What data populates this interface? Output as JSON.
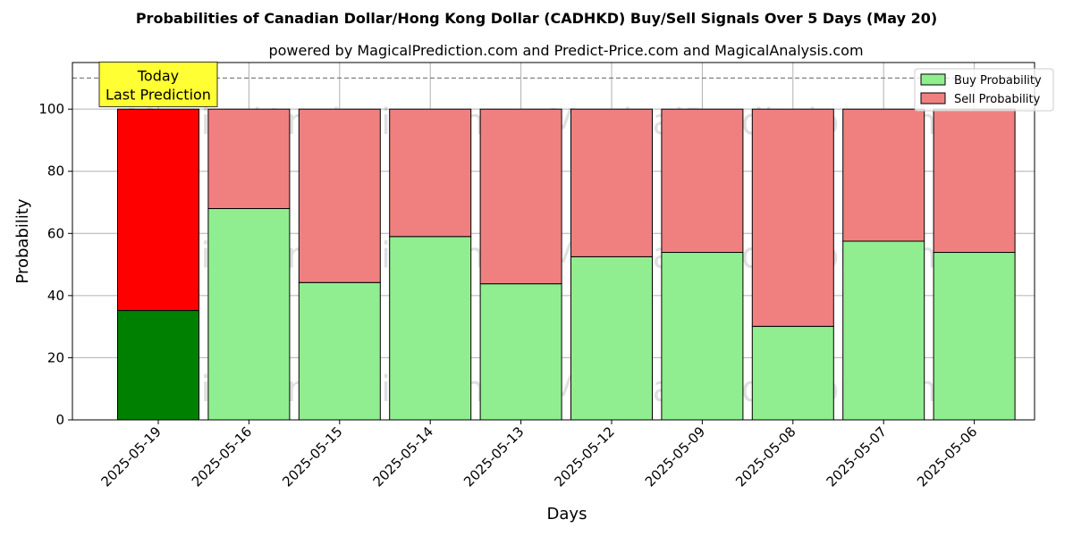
{
  "chart_data": {
    "type": "bar",
    "stacked": true,
    "title": "Probabilities of Canadian Dollar/Hong Kong Dollar (CADHKD) Buy/Sell Signals Over 5 Days (May 20)",
    "subtitle": "powered by MagicalPrediction.com and Predict-Price.com and MagicalAnalysis.com",
    "xlabel": "Days",
    "ylabel": "Probability",
    "ylim": [
      0,
      115
    ],
    "yticks": [
      0,
      20,
      40,
      60,
      80,
      100
    ],
    "grid": true,
    "legend_position": "top-right",
    "categories": [
      "2025-05-19",
      "2025-05-16",
      "2025-05-15",
      "2025-05-14",
      "2025-05-13",
      "2025-05-12",
      "2025-05-09",
      "2025-05-08",
      "2025-05-07",
      "2025-05-06"
    ],
    "series": [
      {
        "name": "Buy Probability",
        "values": [
          35.2,
          68.0,
          44.2,
          59.0,
          43.8,
          52.5,
          53.9,
          30.1,
          57.5,
          53.9
        ]
      },
      {
        "name": "Sell Probability",
        "values": [
          64.8,
          32.0,
          55.8,
          41.0,
          56.2,
          47.5,
          46.1,
          69.9,
          42.5,
          46.1
        ]
      }
    ],
    "reference_line": {
      "y": 110,
      "style": "dashed"
    },
    "annotation": {
      "lines": [
        "Today",
        "Last Prediction"
      ],
      "category": "2025-05-19"
    },
    "watermarks": [
      "MagicalAnalysis.com",
      "MagicalPrediction.com"
    ],
    "colors": {
      "buy": "#90ee90",
      "sell": "#f08080",
      "buy_highlight": "#008000",
      "sell_highlight": "#ff0000",
      "annotation_bg": "#ffff33"
    }
  }
}
